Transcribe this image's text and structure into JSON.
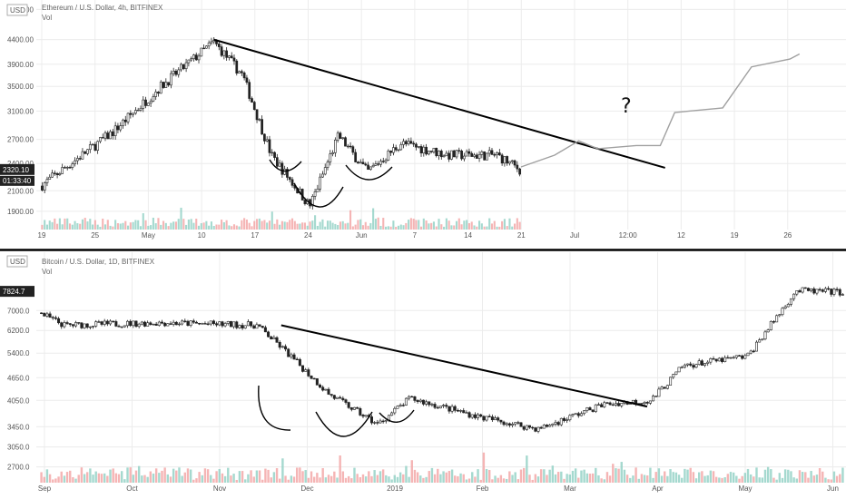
{
  "chart_data": [
    {
      "type": "candlestick",
      "title": "Ethereum / U.S. Dollar, 4h, BITFINEX",
      "volume_label": "Vol",
      "unit_box": "USD",
      "last_price_label": "2320.10",
      "countdown_label": "01:33:40",
      "y_ticks": [
        {
          "v": 1900,
          "label": "1900.00"
        },
        {
          "v": 2100,
          "label": "2100.00"
        },
        {
          "v": 2400,
          "label": "2400.00"
        },
        {
          "v": 2700,
          "label": "2700.00"
        },
        {
          "v": 3100,
          "label": "3100.00"
        },
        {
          "v": 3500,
          "label": "3500.00"
        },
        {
          "v": 3900,
          "label": "3900.00"
        },
        {
          "v": 4400,
          "label": "4400.00"
        },
        {
          "v": 5100,
          "label": "5100.00"
        }
      ],
      "y_scale": "log",
      "x_ticks": [
        "19",
        "25",
        "May",
        "10",
        "17",
        "24",
        "Jun",
        "7",
        "14",
        "21",
        "Jul",
        "12:00",
        "12",
        "19",
        "26"
      ],
      "question_mark": "?",
      "key_points": [
        {
          "t": 0,
          "price": 2150
        },
        {
          "t": 0.05,
          "price": 2350
        },
        {
          "t": 0.15,
          "price": 2800
        },
        {
          "t": 0.25,
          "price": 3500
        },
        {
          "t": 0.36,
          "price": 4350
        },
        {
          "t": 0.42,
          "price": 3700
        },
        {
          "t": 0.48,
          "price": 2500
        },
        {
          "t": 0.56,
          "price": 1950
        },
        {
          "t": 0.62,
          "price": 2750
        },
        {
          "t": 0.68,
          "price": 2300
        },
        {
          "t": 0.75,
          "price": 2650
        },
        {
          "t": 0.85,
          "price": 2500
        },
        {
          "t": 0.95,
          "price": 2500
        },
        {
          "t": 1,
          "price": 2320
        }
      ],
      "trend_line": [
        {
          "t": 0.36,
          "price": 4400
        },
        {
          "t": 1.3,
          "price": 2350
        }
      ],
      "projection": [
        {
          "t": 1.0,
          "price": 2360
        },
        {
          "t": 1.07,
          "price": 2500
        },
        {
          "t": 1.12,
          "price": 2680
        },
        {
          "t": 1.16,
          "price": 2580
        },
        {
          "t": 1.24,
          "price": 2620
        },
        {
          "t": 1.29,
          "price": 2620
        },
        {
          "t": 1.32,
          "price": 3080
        },
        {
          "t": 1.42,
          "price": 3150
        },
        {
          "t": 1.48,
          "price": 3850
        },
        {
          "t": 1.56,
          "price": 4000
        },
        {
          "t": 1.58,
          "price": 4100
        }
      ]
    },
    {
      "type": "candlestick",
      "title": "Bitcoin / U.S. Dollar, 1D, BITFINEX",
      "volume_label": "Vol",
      "unit_box": "USD",
      "last_price_label": "7824.7",
      "y_ticks": [
        {
          "v": 2700,
          "label": "2700.0"
        },
        {
          "v": 3050,
          "label": "3050.0"
        },
        {
          "v": 3450,
          "label": "3450.0"
        },
        {
          "v": 4050,
          "label": "4050.0"
        },
        {
          "v": 4650,
          "label": "4650.0"
        },
        {
          "v": 5400,
          "label": "5400.0"
        },
        {
          "v": 6200,
          "label": "6200.0"
        },
        {
          "v": 7000,
          "label": "7000.0"
        }
      ],
      "y_scale": "log",
      "x_ticks": [
        "Sep",
        "Oct",
        "Nov",
        "Dec",
        "2019",
        "Feb",
        "Mar",
        "Apr",
        "May",
        "Jun"
      ],
      "key_points": [
        {
          "t": 0,
          "price": 6900
        },
        {
          "t": 0.03,
          "price": 6400
        },
        {
          "t": 0.15,
          "price": 6500
        },
        {
          "t": 0.27,
          "price": 6400
        },
        {
          "t": 0.3,
          "price": 5600
        },
        {
          "t": 0.36,
          "price": 4200
        },
        {
          "t": 0.42,
          "price": 3500
        },
        {
          "t": 0.46,
          "price": 4100
        },
        {
          "t": 0.55,
          "price": 3650
        },
        {
          "t": 0.62,
          "price": 3400
        },
        {
          "t": 0.7,
          "price": 3950
        },
        {
          "t": 0.76,
          "price": 4050
        },
        {
          "t": 0.8,
          "price": 5000
        },
        {
          "t": 0.88,
          "price": 5300
        },
        {
          "t": 0.94,
          "price": 7900
        },
        {
          "t": 1,
          "price": 7824
        }
      ],
      "trend_line": [
        {
          "t": 0.3,
          "price": 6400
        },
        {
          "t": 0.755,
          "price": 3900
        }
      ]
    }
  ]
}
